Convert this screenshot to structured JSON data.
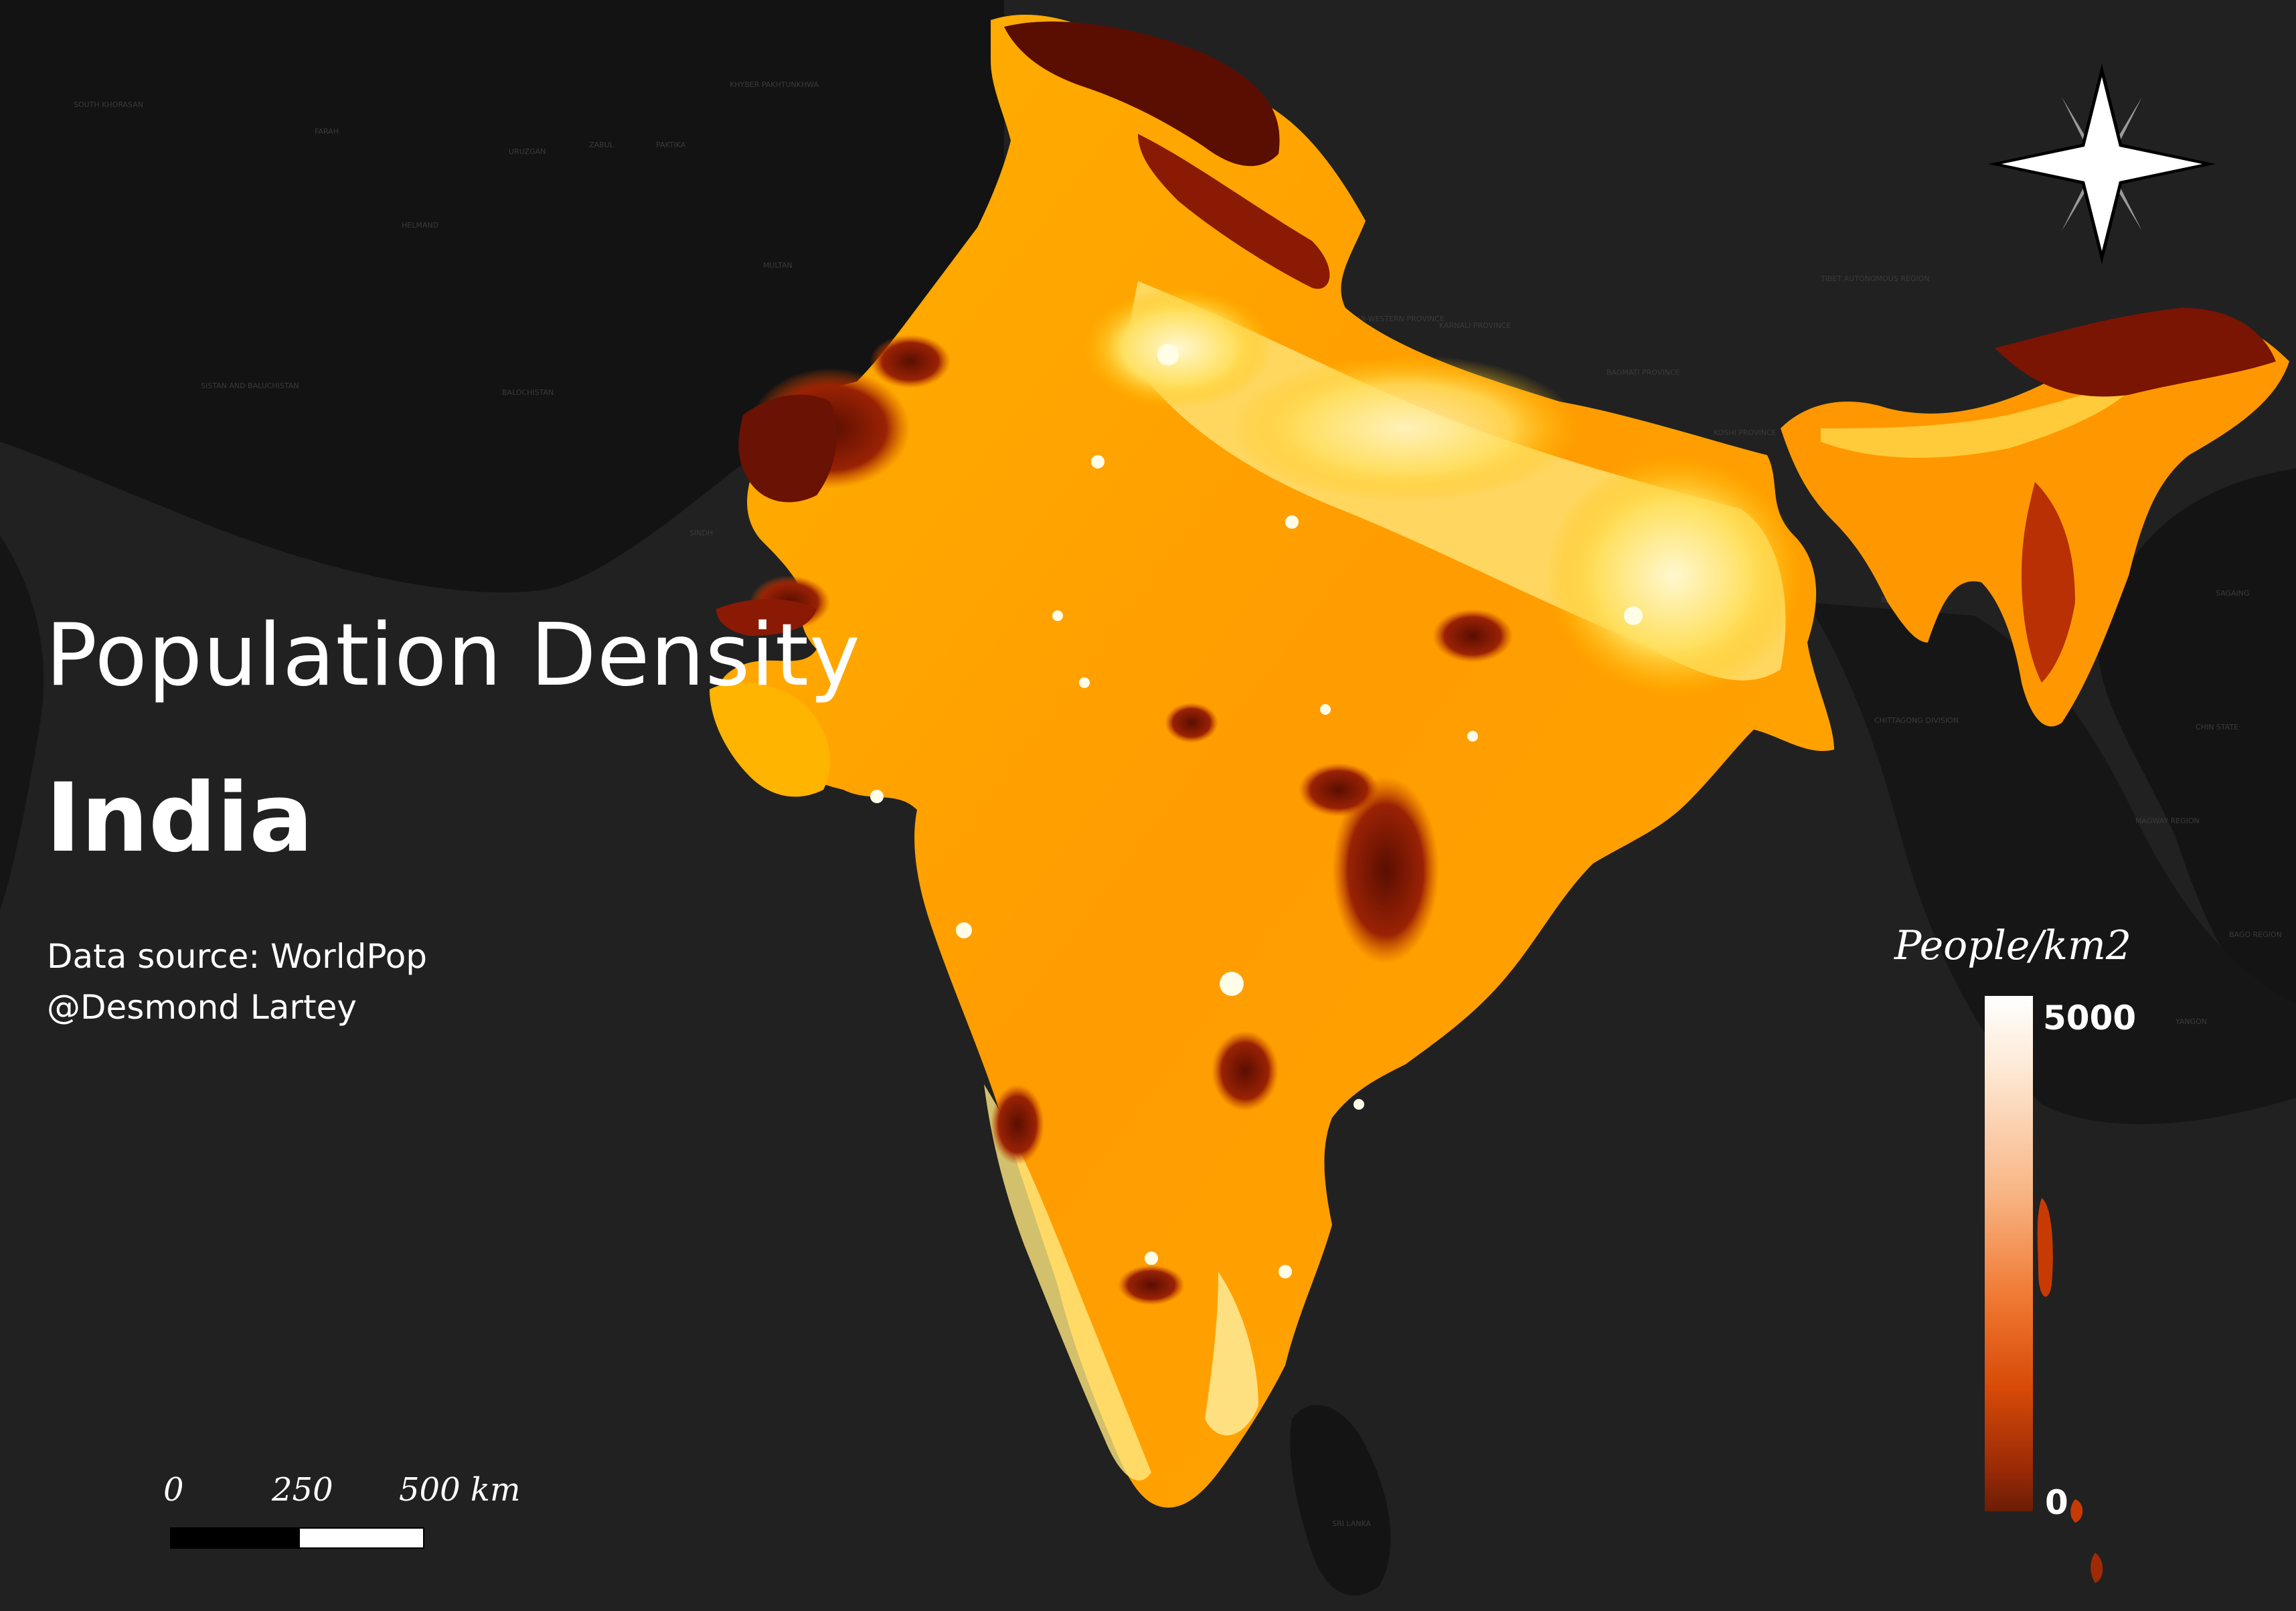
{
  "title": "Population Density",
  "subtitle": "India",
  "credits": {
    "source": "Data source: WorldPop",
    "author": "@Desmond Lartey"
  },
  "legend": {
    "title": "People/km2",
    "max": "5000",
    "min": "0",
    "ramp_colors": [
      "#ffffff",
      "#f8b685",
      "#f07a34",
      "#d84a08",
      "#6b1d06"
    ]
  },
  "scale_bar": {
    "labels": [
      "0",
      "250",
      "500 km"
    ]
  },
  "north_arrow": "compass-rose-icon",
  "colors": {
    "background": "#212121",
    "land": "#111111",
    "low_density": "#8a1a05",
    "mid_density": "#ff9a00",
    "high_density": "#fff4c8"
  }
}
